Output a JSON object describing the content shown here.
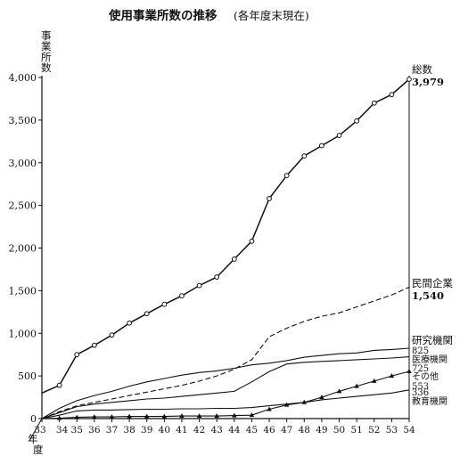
{
  "chart_data": {
    "type": "line",
    "title": "使用事業所数の推移",
    "subtitle": "(各年度末現在)",
    "ylabel": "事業所数",
    "xlabel": "年度",
    "ylim": [
      0,
      4000
    ],
    "y_ticks": [
      "4,000",
      "3,500",
      "3,000",
      "2,500",
      "2,000",
      "1,500",
      "1,000",
      "500",
      "0"
    ],
    "x_ticks": [
      "33",
      "34",
      "35",
      "36",
      "37",
      "38",
      "39",
      "40",
      "41",
      "42",
      "43",
      "44",
      "45",
      "46",
      "47",
      "48",
      "49",
      "50",
      "51",
      "52",
      "53",
      "54"
    ],
    "x": [
      33,
      34,
      35,
      36,
      37,
      38,
      39,
      40,
      41,
      42,
      43,
      44,
      45,
      46,
      47,
      48,
      49,
      50,
      51,
      52,
      53,
      54
    ],
    "grid": false,
    "series": [
      {
        "name": "総数",
        "end_label": "3,979",
        "marker": "circle",
        "dash": "solid",
        "values": [
          300,
          390,
          750,
          860,
          980,
          1120,
          1230,
          1340,
          1440,
          1560,
          1660,
          1870,
          2080,
          2580,
          2850,
          3080,
          3200,
          3320,
          3490,
          3700,
          3800,
          3979
        ]
      },
      {
        "name": "民間企業",
        "end_label": "1,540",
        "marker": "none",
        "dash": "dashed",
        "values": [
          0,
          80,
          150,
          190,
          230,
          270,
          310,
          350,
          390,
          440,
          500,
          580,
          690,
          960,
          1060,
          1140,
          1200,
          1240,
          1310,
          1380,
          1450,
          1540
        ]
      },
      {
        "name": "研究機関",
        "end_label": "825",
        "marker": "none",
        "dash": "solid",
        "values": [
          0,
          120,
          210,
          270,
          320,
          380,
          430,
          470,
          510,
          540,
          560,
          590,
          630,
          650,
          680,
          720,
          740,
          760,
          770,
          800,
          810,
          825
        ]
      },
      {
        "name": "医療機関",
        "end_label": "725",
        "marker": "none",
        "dash": "solid",
        "values": [
          0,
          70,
          140,
          170,
          190,
          210,
          230,
          240,
          260,
          280,
          300,
          320,
          430,
          550,
          640,
          660,
          670,
          680,
          690,
          700,
          710,
          725
        ]
      },
      {
        "name": "その他",
        "end_label": "553",
        "marker": "triangle",
        "dash": "solid",
        "values": [
          0,
          5,
          15,
          20,
          20,
          25,
          25,
          25,
          30,
          30,
          30,
          35,
          40,
          110,
          160,
          190,
          250,
          320,
          380,
          440,
          500,
          553
        ]
      },
      {
        "name": "教育機関",
        "end_label": "336",
        "marker": "none",
        "dash": "solid",
        "values": [
          0,
          40,
          90,
          100,
          100,
          105,
          110,
          110,
          115,
          115,
          120,
          120,
          130,
          150,
          170,
          190,
          220,
          240,
          260,
          280,
          300,
          336
        ]
      }
    ]
  }
}
